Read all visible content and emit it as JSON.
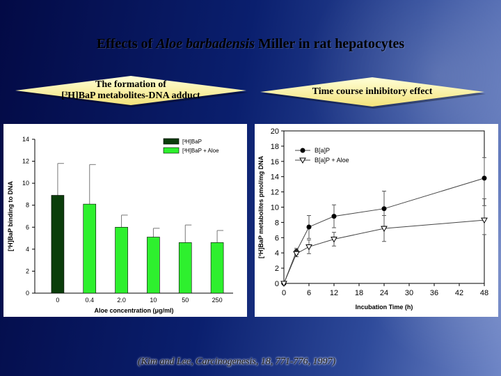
{
  "slide": {
    "title_prefix": "Effects of ",
    "title_italic": "Aloe barbadensis",
    "title_suffix": " Miller in rat hepatocytes",
    "left_caption_line1": "The formation of",
    "left_caption_line2": "[³H]BaP metabolites-DNA adduct",
    "right_caption": "Time course inhibitory effect",
    "citation": "(Kim and Lee, Carcinogenesis, 18, 771-776, 1997)"
  },
  "chart_data": [
    {
      "type": "bar",
      "categories": [
        "0",
        "0.4",
        "2.0",
        "10",
        "50",
        "250"
      ],
      "series": [
        {
          "name": "[³H]BaP",
          "color": "#0b3d0b",
          "values": [
            8.9,
            null,
            null,
            null,
            null,
            null
          ],
          "errors": [
            2.9,
            null,
            null,
            null,
            null,
            null
          ]
        },
        {
          "name": "[³H]BaP + Aloe",
          "color": "#2ef02e",
          "values": [
            null,
            8.1,
            6.0,
            5.1,
            4.6,
            4.6
          ],
          "errors": [
            null,
            3.6,
            1.1,
            0.8,
            1.6,
            1.1
          ]
        }
      ],
      "xlabel": "Aloe concentration (μg/ml)",
      "ylabel": "[³H]BaP binding to DNA",
      "ylim": [
        0,
        14
      ],
      "yticks": [
        "0",
        "2",
        "4",
        "6",
        "8",
        "10",
        "12",
        "14"
      ],
      "legend": "top-right",
      "grid": false
    },
    {
      "type": "line",
      "series": [
        {
          "name": "B[a]P",
          "marker": "filled-circle",
          "x": [
            0,
            3,
            6,
            12,
            24,
            48
          ],
          "y": [
            0,
            4.2,
            7.4,
            8.8,
            9.8,
            13.8
          ],
          "errors": [
            0,
            0.4,
            1.5,
            1.5,
            2.3,
            2.7
          ]
        },
        {
          "name": "B[a]P + Aloe",
          "marker": "open-triangle",
          "x": [
            0,
            3,
            6,
            12,
            24,
            48
          ],
          "y": [
            0,
            3.9,
            4.8,
            5.8,
            7.2,
            8.3
          ],
          "errors": [
            0,
            0.4,
            0.9,
            0.9,
            1.7,
            1.9
          ]
        }
      ],
      "xlabel": "Incubation Time (h)",
      "ylabel": "[³H]BaP metabolites pmol/mg DNA",
      "xlim": [
        0,
        48
      ],
      "ylim": [
        0,
        20
      ],
      "xticks": [
        "0",
        "6",
        "12",
        "18",
        "24",
        "30",
        "36",
        "42",
        "48"
      ],
      "yticks": [
        "0",
        "2",
        "4",
        "6",
        "8",
        "10",
        "12",
        "14",
        "16",
        "18",
        "20"
      ],
      "legend": "top-left",
      "grid": false
    }
  ]
}
